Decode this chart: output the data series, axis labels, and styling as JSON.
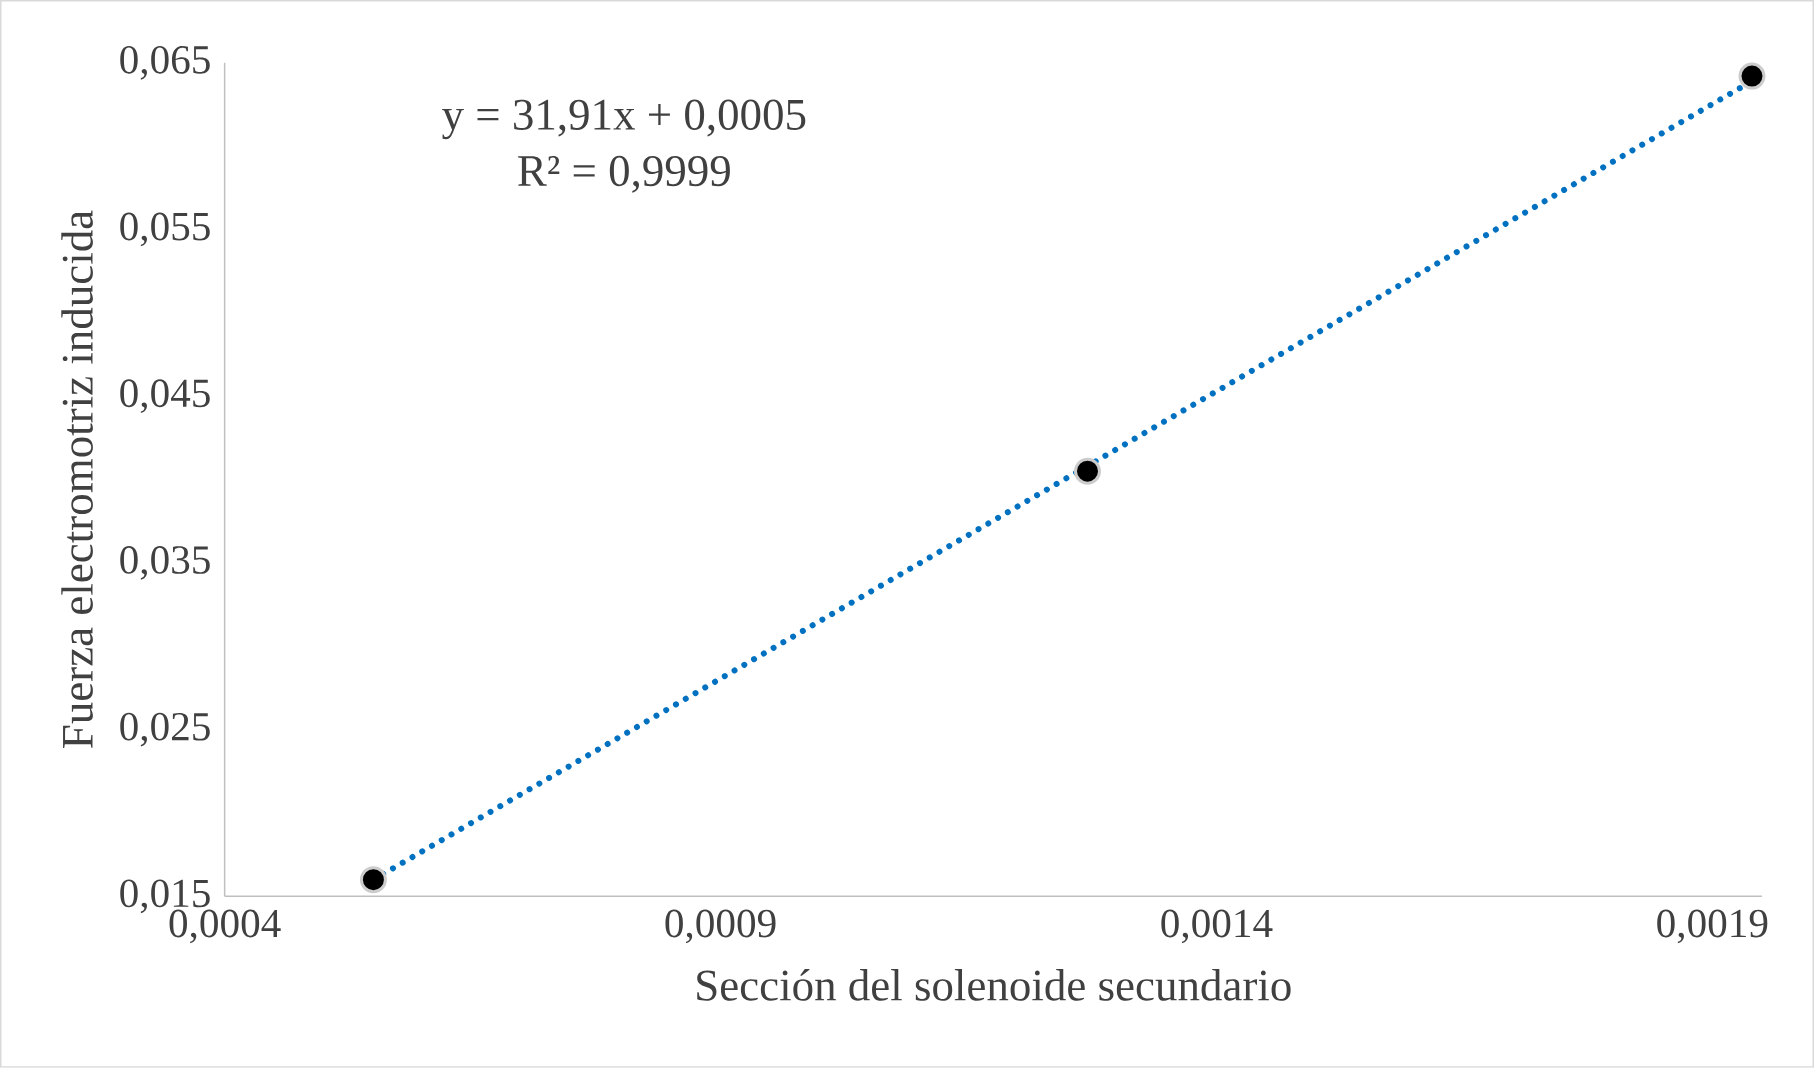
{
  "chart_data": {
    "type": "scatter",
    "xlabel": "Sección del solenoide secundario",
    "ylabel": "Fuerza electromotriz inducida",
    "xlim": [
      0.0004,
      0.00195
    ],
    "ylim": [
      0.015,
      0.065
    ],
    "xticks": [
      {
        "value": 0.0004,
        "label": "0,0004"
      },
      {
        "value": 0.0009,
        "label": "0,0009"
      },
      {
        "value": 0.0014,
        "label": "0,0014"
      },
      {
        "value": 0.0019,
        "label": "0,0019"
      }
    ],
    "yticks": [
      {
        "value": 0.015,
        "label": "0,015"
      },
      {
        "value": 0.025,
        "label": "0,025"
      },
      {
        "value": 0.035,
        "label": "0,035"
      },
      {
        "value": 0.045,
        "label": "0,045"
      },
      {
        "value": 0.055,
        "label": "0,055"
      },
      {
        "value": 0.065,
        "label": "0,065"
      }
    ],
    "grid": false,
    "marker": "circle",
    "series": [
      {
        "type": "line",
        "color": "#0070c0",
        "line_style": "dotted",
        "marker": "none",
        "x": [
          0.00055,
          0.00194
        ],
        "values": [
          0.016,
          0.0639
        ]
      },
      {
        "color": "#000000",
        "x": [
          0.00055,
          0.00127,
          0.00194
        ],
        "values": [
          0.016,
          0.0405,
          0.0642
        ]
      }
    ],
    "annotations": [
      "y = 31,91x + 0,0005",
      "R² = 0,9999"
    ]
  }
}
